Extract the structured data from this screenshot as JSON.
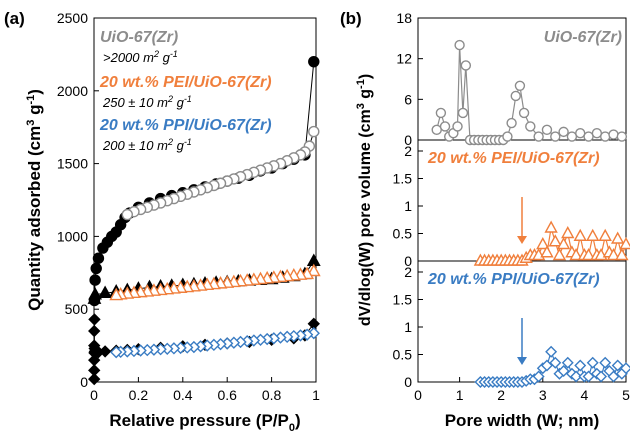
{
  "panel_a": {
    "letter": "(a)",
    "xlabel": "Relative pressure (P/P",
    "xlabel_sub": "0",
    "xlabel_close": ")",
    "ylabel": "Quantity adsorbed (cm",
    "ylabel_sup1": "3",
    "ylabel_mid": " g",
    "ylabel_sup2": "-1",
    "ylabel_close": ")",
    "annotations": [
      {
        "text": "UiO-67(Zr)",
        "color": "#8c8c8c"
      },
      {
        "text": ">2000 m",
        "sup": "2",
        "after": " g",
        "sup2": "-1",
        "color": "#000000"
      },
      {
        "text": "20 wt.% PEI/UiO-67(Zr)",
        "color": "#f07f3c"
      },
      {
        "text": "250 ± 10 m",
        "sup": "2",
        "after": " g",
        "sup2": "-1",
        "color": "#000000"
      },
      {
        "text": "20 wt.% PPI/UiO-67(Zr)",
        "color": "#3a7cc3"
      },
      {
        "text": "200 ± 10 m",
        "sup": "2",
        "after": " g",
        "sup2": "-1",
        "color": "#000000"
      }
    ]
  },
  "panel_b": {
    "letter": "(b)",
    "xlabel": "Pore width (W; nm)",
    "ylabel": "dV/dlog(W) pore volume (cm",
    "ylabel_sup1": "3",
    "ylabel_mid": " g",
    "ylabel_sup2": "-1",
    "ylabel_close": ")",
    "sub_labels": [
      {
        "text": "UiO-67(Zr)",
        "color": "#8c8c8c"
      },
      {
        "text": "20 wt.% PEI/UiO-67(Zr)",
        "color": "#f07f3c"
      },
      {
        "text": "20 wt.% PPI/UiO-67(Zr)",
        "color": "#3a7cc3"
      }
    ]
  },
  "chart_data": [
    {
      "type": "scatter",
      "title": "",
      "xlabel": "Relative pressure (P/P0)",
      "ylabel": "Quantity adsorbed (cm3 g-1)",
      "xlim": [
        0,
        1
      ],
      "ylim": [
        0,
        2500
      ],
      "xticks": [
        0,
        0.2,
        0.4,
        0.6,
        0.8,
        1
      ],
      "xtick_labels": [
        "0",
        "0.2",
        "0.4",
        "0.6",
        "0.8",
        "1"
      ],
      "yticks": [
        0,
        500,
        1000,
        1500,
        2000,
        2500
      ],
      "ytick_labels": [
        "0",
        "500",
        "1000",
        "1500",
        "2000",
        "2500"
      ],
      "grid": false,
      "series": [
        {
          "material": "UiO-67(Zr)",
          "marker": "circle",
          "color": "#000000",
          "fill": "#000000",
          "x": [
            0.002,
            0.005,
            0.01,
            0.02,
            0.04,
            0.06,
            0.08,
            0.1,
            0.12,
            0.14,
            0.16,
            0.2,
            0.25,
            0.3,
            0.35,
            0.4,
            0.45,
            0.5,
            0.55,
            0.6,
            0.65,
            0.7,
            0.75,
            0.8,
            0.85,
            0.9,
            0.95,
            0.99
          ],
          "y": [
            560,
            700,
            780,
            850,
            920,
            960,
            1000,
            1030,
            1080,
            1130,
            1160,
            1200,
            1230,
            1260,
            1280,
            1300,
            1320,
            1340,
            1360,
            1380,
            1400,
            1420,
            1450,
            1470,
            1500,
            1530,
            1560,
            2200
          ]
        },
        {
          "material": "UiO-67(Zr)",
          "marker": "circle",
          "color": "#8c8c8c",
          "fill": "#ffffff",
          "x": [
            0.99,
            0.97,
            0.95,
            0.93,
            0.9,
            0.87,
            0.84,
            0.81,
            0.78,
            0.75,
            0.72,
            0.69,
            0.66,
            0.63,
            0.6,
            0.57,
            0.54,
            0.51,
            0.48,
            0.45,
            0.42,
            0.39,
            0.36,
            0.33,
            0.3,
            0.27,
            0.24,
            0.21,
            0.18,
            0.15
          ],
          "y": [
            1720,
            1620,
            1580,
            1560,
            1540,
            1520,
            1500,
            1485,
            1470,
            1455,
            1440,
            1425,
            1410,
            1395,
            1380,
            1365,
            1350,
            1335,
            1320,
            1305,
            1290,
            1275,
            1260,
            1245,
            1230,
            1215,
            1200,
            1185,
            1170,
            1150
          ]
        },
        {
          "material": "20 wt.% PEI/UiO-67(Zr)",
          "marker": "triangle",
          "color": "#000000",
          "fill": "#000000",
          "x": [
            0.002,
            0.005,
            0.05,
            0.1,
            0.15,
            0.2,
            0.25,
            0.3,
            0.35,
            0.4,
            0.45,
            0.5,
            0.55,
            0.6,
            0.65,
            0.7,
            0.75,
            0.8,
            0.85,
            0.9,
            0.95,
            0.99
          ],
          "y": [
            570,
            600,
            610,
            620,
            630,
            640,
            650,
            655,
            660,
            665,
            670,
            675,
            680,
            685,
            690,
            695,
            700,
            705,
            715,
            725,
            740,
            830
          ]
        },
        {
          "material": "20 wt.% PEI/UiO-67(Zr)",
          "marker": "triangle",
          "color": "#f07f3c",
          "fill": "#ffffff",
          "x": [
            0.99,
            0.96,
            0.93,
            0.9,
            0.87,
            0.84,
            0.81,
            0.78,
            0.75,
            0.72,
            0.69,
            0.66,
            0.63,
            0.6,
            0.57,
            0.54,
            0.51,
            0.48,
            0.45,
            0.42,
            0.39,
            0.36,
            0.33,
            0.3,
            0.27,
            0.24,
            0.21,
            0.18,
            0.15,
            0.12,
            0.1
          ],
          "y": [
            760,
            740,
            735,
            730,
            725,
            720,
            715,
            710,
            705,
            700,
            695,
            690,
            685,
            680,
            675,
            670,
            665,
            660,
            655,
            650,
            645,
            640,
            635,
            630,
            625,
            620,
            615,
            610,
            605,
            600,
            595
          ]
        },
        {
          "material": "20 wt.% PPI/UiO-67(Zr)",
          "marker": "diamond",
          "color": "#000000",
          "fill": "#000000",
          "x": [
            0.001,
            0.001,
            0.001,
            0.001,
            0.001,
            0.002,
            0.002,
            0.003,
            0.004,
            0.005,
            0.02,
            0.05,
            0.1,
            0.15,
            0.2,
            0.3,
            0.4,
            0.5,
            0.6,
            0.7,
            0.8,
            0.9,
            0.95,
            0.99
          ],
          "y": [
            20,
            80,
            150,
            250,
            350,
            430,
            200,
            230,
            210,
            200,
            205,
            210,
            215,
            220,
            225,
            235,
            245,
            255,
            265,
            275,
            290,
            300,
            320,
            400
          ]
        },
        {
          "material": "20 wt.% PPI/UiO-67(Zr)",
          "marker": "diamond",
          "color": "#3a7cc3",
          "fill": "#ffffff",
          "x": [
            0.99,
            0.96,
            0.93,
            0.9,
            0.87,
            0.84,
            0.81,
            0.78,
            0.75,
            0.72,
            0.69,
            0.66,
            0.63,
            0.6,
            0.57,
            0.54,
            0.51,
            0.48,
            0.45,
            0.42,
            0.39,
            0.36,
            0.33,
            0.3,
            0.27,
            0.24,
            0.21,
            0.18,
            0.15,
            0.12,
            0.1
          ],
          "y": [
            335,
            325,
            320,
            315,
            310,
            305,
            300,
            295,
            290,
            285,
            280,
            275,
            270,
            265,
            260,
            255,
            250,
            245,
            240,
            237,
            234,
            231,
            228,
            225,
            222,
            219,
            216,
            213,
            210,
            207,
            205
          ]
        }
      ]
    },
    {
      "type": "line",
      "title": "",
      "material": "UiO-67(Zr)",
      "xlabel": "Pore width (W; nm)",
      "ylabel": "dV/dlog(W) pore volume (cm3 g-1)",
      "xlim": [
        0,
        5
      ],
      "ylim": [
        0,
        18
      ],
      "yticks": [
        0,
        6,
        12,
        18
      ],
      "ytick_labels": [
        "0",
        "6",
        "12",
        "18"
      ],
      "marker": "circle",
      "color": "#8c8c8c",
      "x": [
        0.45,
        0.55,
        0.65,
        0.75,
        0.85,
        0.95,
        1.0,
        1.08,
        1.15,
        1.25,
        1.35,
        1.45,
        1.55,
        1.65,
        1.75,
        1.85,
        1.95,
        2.05,
        2.15,
        2.25,
        2.35,
        2.45,
        2.55,
        2.7,
        2.9,
        3.1,
        3.3,
        3.5,
        3.7,
        3.9,
        4.1,
        4.3,
        4.5,
        4.7,
        4.9
      ],
      "y": [
        1.5,
        4.0,
        2.0,
        0.5,
        1.0,
        2.0,
        14.0,
        4.0,
        11.0,
        0.0,
        0.0,
        0.0,
        0.0,
        0.0,
        0.0,
        0.0,
        0.0,
        0.0,
        0.5,
        2.5,
        6.5,
        8.0,
        4.0,
        2.0,
        0.5,
        1.5,
        0.5,
        1.2,
        0.5,
        1.0,
        0.5,
        1.0,
        0.5,
        0.8,
        0.5
      ]
    },
    {
      "type": "line",
      "title": "",
      "material": "20 wt.% PEI/UiO-67(Zr)",
      "xlim": [
        0,
        5
      ],
      "ylim": [
        0,
        2.2
      ],
      "yticks": [
        0,
        0.5,
        1,
        1.5,
        2
      ],
      "ytick_labels": [
        "0",
        "0.5",
        "1",
        "1.5",
        "2"
      ],
      "marker": "triangle",
      "color": "#f07f3c",
      "x": [
        1.5,
        1.6,
        1.7,
        1.8,
        1.9,
        2.0,
        2.1,
        2.2,
        2.3,
        2.4,
        2.5,
        2.6,
        2.7,
        2.8,
        2.9,
        3.0,
        3.1,
        3.2,
        3.3,
        3.4,
        3.5,
        3.6,
        3.7,
        3.8,
        3.9,
        4.0,
        4.1,
        4.2,
        4.3,
        4.4,
        4.5,
        4.6,
        4.7,
        4.8,
        4.9,
        5.0
      ],
      "y": [
        0,
        0,
        0,
        0,
        0,
        0,
        0,
        0,
        0,
        0,
        0,
        0.05,
        0.1,
        0.1,
        0.1,
        0.3,
        0.15,
        0.6,
        0.35,
        0.1,
        0.3,
        0.5,
        0.15,
        0.1,
        0.45,
        0.1,
        0.1,
        0.45,
        0.1,
        0.1,
        0.45,
        0.15,
        0.1,
        0.4,
        0.1,
        0.3
      ],
      "annotation_arrow_x": 2.5
    },
    {
      "type": "line",
      "title": "",
      "material": "20 wt.% PPI/UiO-67(Zr)",
      "xlim": [
        0,
        5
      ],
      "ylim": [
        0,
        2.2
      ],
      "xticks": [
        0,
        1,
        2,
        3,
        4,
        5
      ],
      "xtick_labels": [
        "0",
        "1",
        "2",
        "3",
        "4",
        "5"
      ],
      "yticks": [
        0,
        0.5,
        1,
        1.5,
        2
      ],
      "ytick_labels": [
        "0",
        "0.5",
        "1",
        "1.5",
        "2"
      ],
      "marker": "diamond",
      "color": "#3a7cc3",
      "x": [
        1.5,
        1.6,
        1.7,
        1.8,
        1.9,
        2.0,
        2.1,
        2.2,
        2.3,
        2.4,
        2.5,
        2.6,
        2.7,
        2.8,
        2.9,
        3.0,
        3.1,
        3.2,
        3.3,
        3.4,
        3.5,
        3.6,
        3.7,
        3.8,
        3.9,
        4.0,
        4.1,
        4.2,
        4.3,
        4.4,
        4.5,
        4.6,
        4.7,
        4.8,
        4.9,
        5.0
      ],
      "y": [
        0,
        0,
        0,
        0,
        0,
        0,
        0,
        0,
        0,
        0,
        0,
        0.02,
        0.05,
        0.05,
        0.1,
        0.25,
        0.3,
        0.55,
        0.35,
        0.15,
        0.2,
        0.35,
        0.15,
        0.1,
        0.3,
        0.1,
        0.1,
        0.35,
        0.15,
        0.1,
        0.35,
        0.2,
        0.1,
        0.3,
        0.15,
        0.25
      ],
      "annotation_arrow_x": 2.5
    }
  ]
}
